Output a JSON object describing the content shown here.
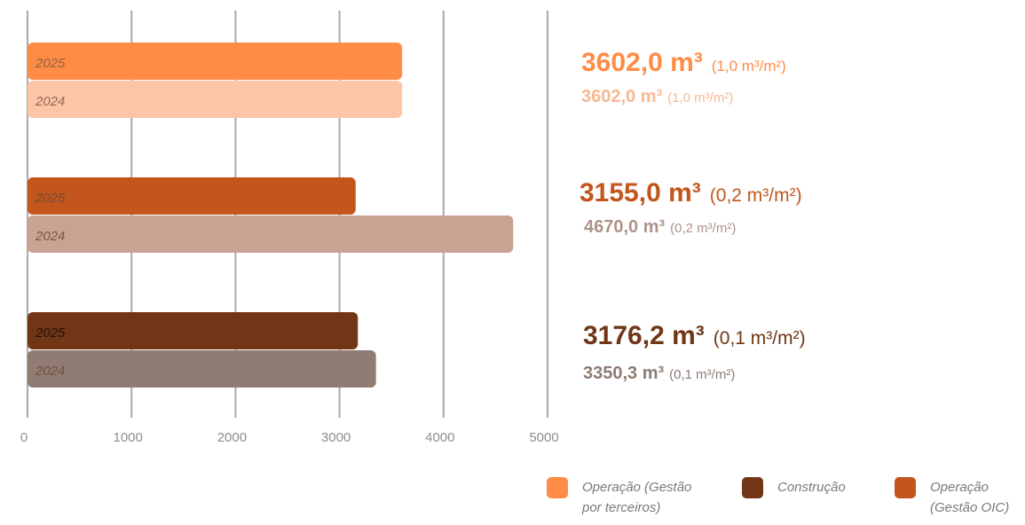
{
  "chart_data": {
    "type": "bar",
    "orientation": "horizontal",
    "xlim": [
      0,
      5000
    ],
    "x_ticks": [
      "0",
      "1000",
      "2000",
      "3000",
      "4000",
      "5000"
    ],
    "grid": "vertical",
    "groups": [
      {
        "bars": [
          {
            "label": "2025",
            "value": 3602.0,
            "color": "#ff8c45"
          },
          {
            "label": "2024",
            "value": 3602.0,
            "color": "#fdc5a5"
          }
        ],
        "annotation": {
          "main_value": "3602,0 m³",
          "main_rate": "(1,0 m³/m²)",
          "prev_value": "3602,0 m³",
          "prev_rate": "(1,0 m³/m²)",
          "main_color": "#ff8c45",
          "prev_color": "#f7b893"
        }
      },
      {
        "bars": [
          {
            "label": "2025",
            "value": 3155.0,
            "color": "#c2561c"
          },
          {
            "label": "2024",
            "value": 4670.0,
            "color": "#c9a293"
          }
        ],
        "annotation": {
          "main_value": "3155,0 m³",
          "main_rate": "(0,2 m³/m²)",
          "prev_value": "4670,0 m³",
          "prev_rate": "(0,2 m³/m²)",
          "main_color": "#c2561c",
          "prev_color": "#ae938a"
        }
      },
      {
        "bars": [
          {
            "label": "2025",
            "value": 3176.2,
            "color": "#703616"
          },
          {
            "label": "2024",
            "value": 3350.3,
            "color": "#907c73"
          }
        ],
        "annotation": {
          "main_value": "3176,2 m³",
          "main_rate": "(0,1 m³/m²)",
          "prev_value": "3350,3 m³",
          "prev_rate": "(0,1 m³/m²)",
          "main_color": "#703616",
          "prev_color": "#8d7b74"
        }
      }
    ],
    "legend": [
      {
        "label": "Operação (Gestão\npor terceiros)",
        "color": "#ff8c45"
      },
      {
        "label": "Construção",
        "color": "#703616"
      },
      {
        "label": "Operação\n(Gestão OIC)",
        "color": "#c2561c"
      }
    ],
    "legend_position": "bottom-right"
  }
}
